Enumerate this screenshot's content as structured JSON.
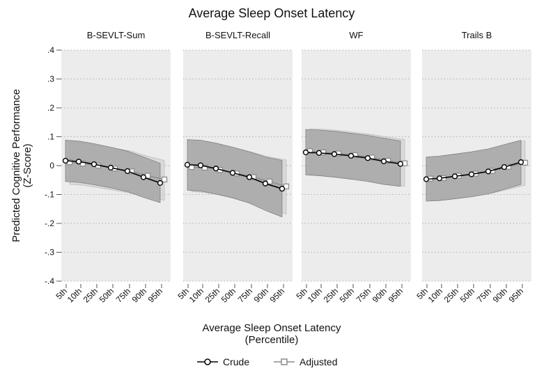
{
  "chart_data": {
    "type": "line",
    "title": "Average Sleep Onset Latency",
    "ylabel_lines": [
      "Predicted Cognitive Performance",
      "(Z-Score)"
    ],
    "xlabel_lines": [
      "Average Sleep Onset Latency",
      "(Percentile)"
    ],
    "ylim": [
      -0.4,
      0.4
    ],
    "yticks": [
      0.4,
      0.3,
      0.2,
      0.1,
      0,
      -0.1,
      -0.2,
      -0.3,
      -0.4
    ],
    "ytick_labels": [
      ".4",
      ".3",
      ".2",
      ".1",
      "0",
      "-.1",
      "-.2",
      "-.3",
      "-.4"
    ],
    "categories": [
      "5th",
      "10th",
      "25th",
      "50th",
      "75th",
      "90th",
      "95th"
    ],
    "grid": true,
    "legend_position": "bottom",
    "legend": [
      {
        "name": "Crude",
        "marker": "circle"
      },
      {
        "name": "Adjusted",
        "marker": "square"
      }
    ],
    "colors": {
      "crude": "#000000",
      "adjusted": "#8c8c8c",
      "plot_bg": "#ececec",
      "crude_ci": "#a6a6a6",
      "adjusted_ci": "#d6d6d6"
    },
    "panels": [
      {
        "title": "B-SEVLT-Sum",
        "series": [
          {
            "name": "Crude",
            "values": [
              0.017,
              0.014,
              0.005,
              -0.007,
              -0.019,
              -0.04,
              -0.06
            ],
            "ci_low": [
              -0.055,
              -0.058,
              -0.066,
              -0.077,
              -0.09,
              -0.11,
              -0.128
            ],
            "ci_high": [
              0.088,
              0.085,
              0.076,
              0.064,
              0.05,
              0.03,
              0.008
            ]
          },
          {
            "name": "Adjusted",
            "values": [
              0.012,
              0.007,
              0.0,
              -0.01,
              -0.02,
              -0.035,
              -0.048
            ],
            "ci_low": [
              -0.065,
              -0.068,
              -0.076,
              -0.086,
              -0.096,
              -0.108,
              -0.12
            ],
            "ci_high": [
              0.08,
              0.078,
              0.07,
              0.06,
              0.05,
              0.032,
              0.018
            ]
          }
        ]
      },
      {
        "title": "B-SEVLT-Recall",
        "series": [
          {
            "name": "Crude",
            "values": [
              0.003,
              0.001,
              -0.01,
              -0.025,
              -0.04,
              -0.062,
              -0.08
            ],
            "ci_low": [
              -0.085,
              -0.088,
              -0.098,
              -0.112,
              -0.13,
              -0.155,
              -0.178
            ],
            "ci_high": [
              0.09,
              0.088,
              0.078,
              0.064,
              0.048,
              0.03,
              0.018
            ]
          },
          {
            "name": "Adjusted",
            "values": [
              -0.005,
              -0.007,
              -0.015,
              -0.027,
              -0.04,
              -0.055,
              -0.072
            ],
            "ci_low": [
              -0.09,
              -0.093,
              -0.103,
              -0.115,
              -0.13,
              -0.15,
              -0.168
            ],
            "ci_high": [
              0.08,
              0.078,
              0.07,
              0.06,
              0.045,
              0.03,
              0.02
            ]
          }
        ]
      },
      {
        "title": "WF",
        "series": [
          {
            "name": "Crude",
            "values": [
              0.046,
              0.044,
              0.04,
              0.034,
              0.026,
              0.015,
              0.006
            ],
            "ci_low": [
              -0.032,
              -0.035,
              -0.04,
              -0.047,
              -0.055,
              -0.065,
              -0.072
            ],
            "ci_high": [
              0.125,
              0.123,
              0.119,
              0.112,
              0.105,
              0.095,
              0.085
            ]
          },
          {
            "name": "Adjusted",
            "values": [
              0.05,
              0.046,
              0.042,
              0.036,
              0.028,
              0.017,
              0.008
            ],
            "ci_low": [
              -0.03,
              -0.033,
              -0.038,
              -0.045,
              -0.053,
              -0.063,
              -0.072
            ],
            "ci_high": [
              0.128,
              0.126,
              0.122,
              0.115,
              0.108,
              0.098,
              0.09
            ]
          }
        ]
      },
      {
        "title": "Trails B",
        "series": [
          {
            "name": "Crude",
            "values": [
              -0.047,
              -0.044,
              -0.037,
              -0.03,
              -0.02,
              -0.005,
              0.012
            ],
            "ci_low": [
              -0.123,
              -0.121,
              -0.115,
              -0.108,
              -0.098,
              -0.082,
              -0.065
            ],
            "ci_high": [
              0.03,
              0.033,
              0.04,
              0.048,
              0.058,
              0.073,
              0.088
            ]
          },
          {
            "name": "Adjusted",
            "values": [
              -0.045,
              -0.043,
              -0.035,
              -0.028,
              -0.018,
              -0.004,
              0.01
            ],
            "ci_low": [
              -0.12,
              -0.118,
              -0.112,
              -0.104,
              -0.095,
              -0.082,
              -0.068
            ],
            "ci_high": [
              0.03,
              0.032,
              0.04,
              0.048,
              0.058,
              0.072,
              0.086
            ]
          }
        ]
      }
    ]
  }
}
